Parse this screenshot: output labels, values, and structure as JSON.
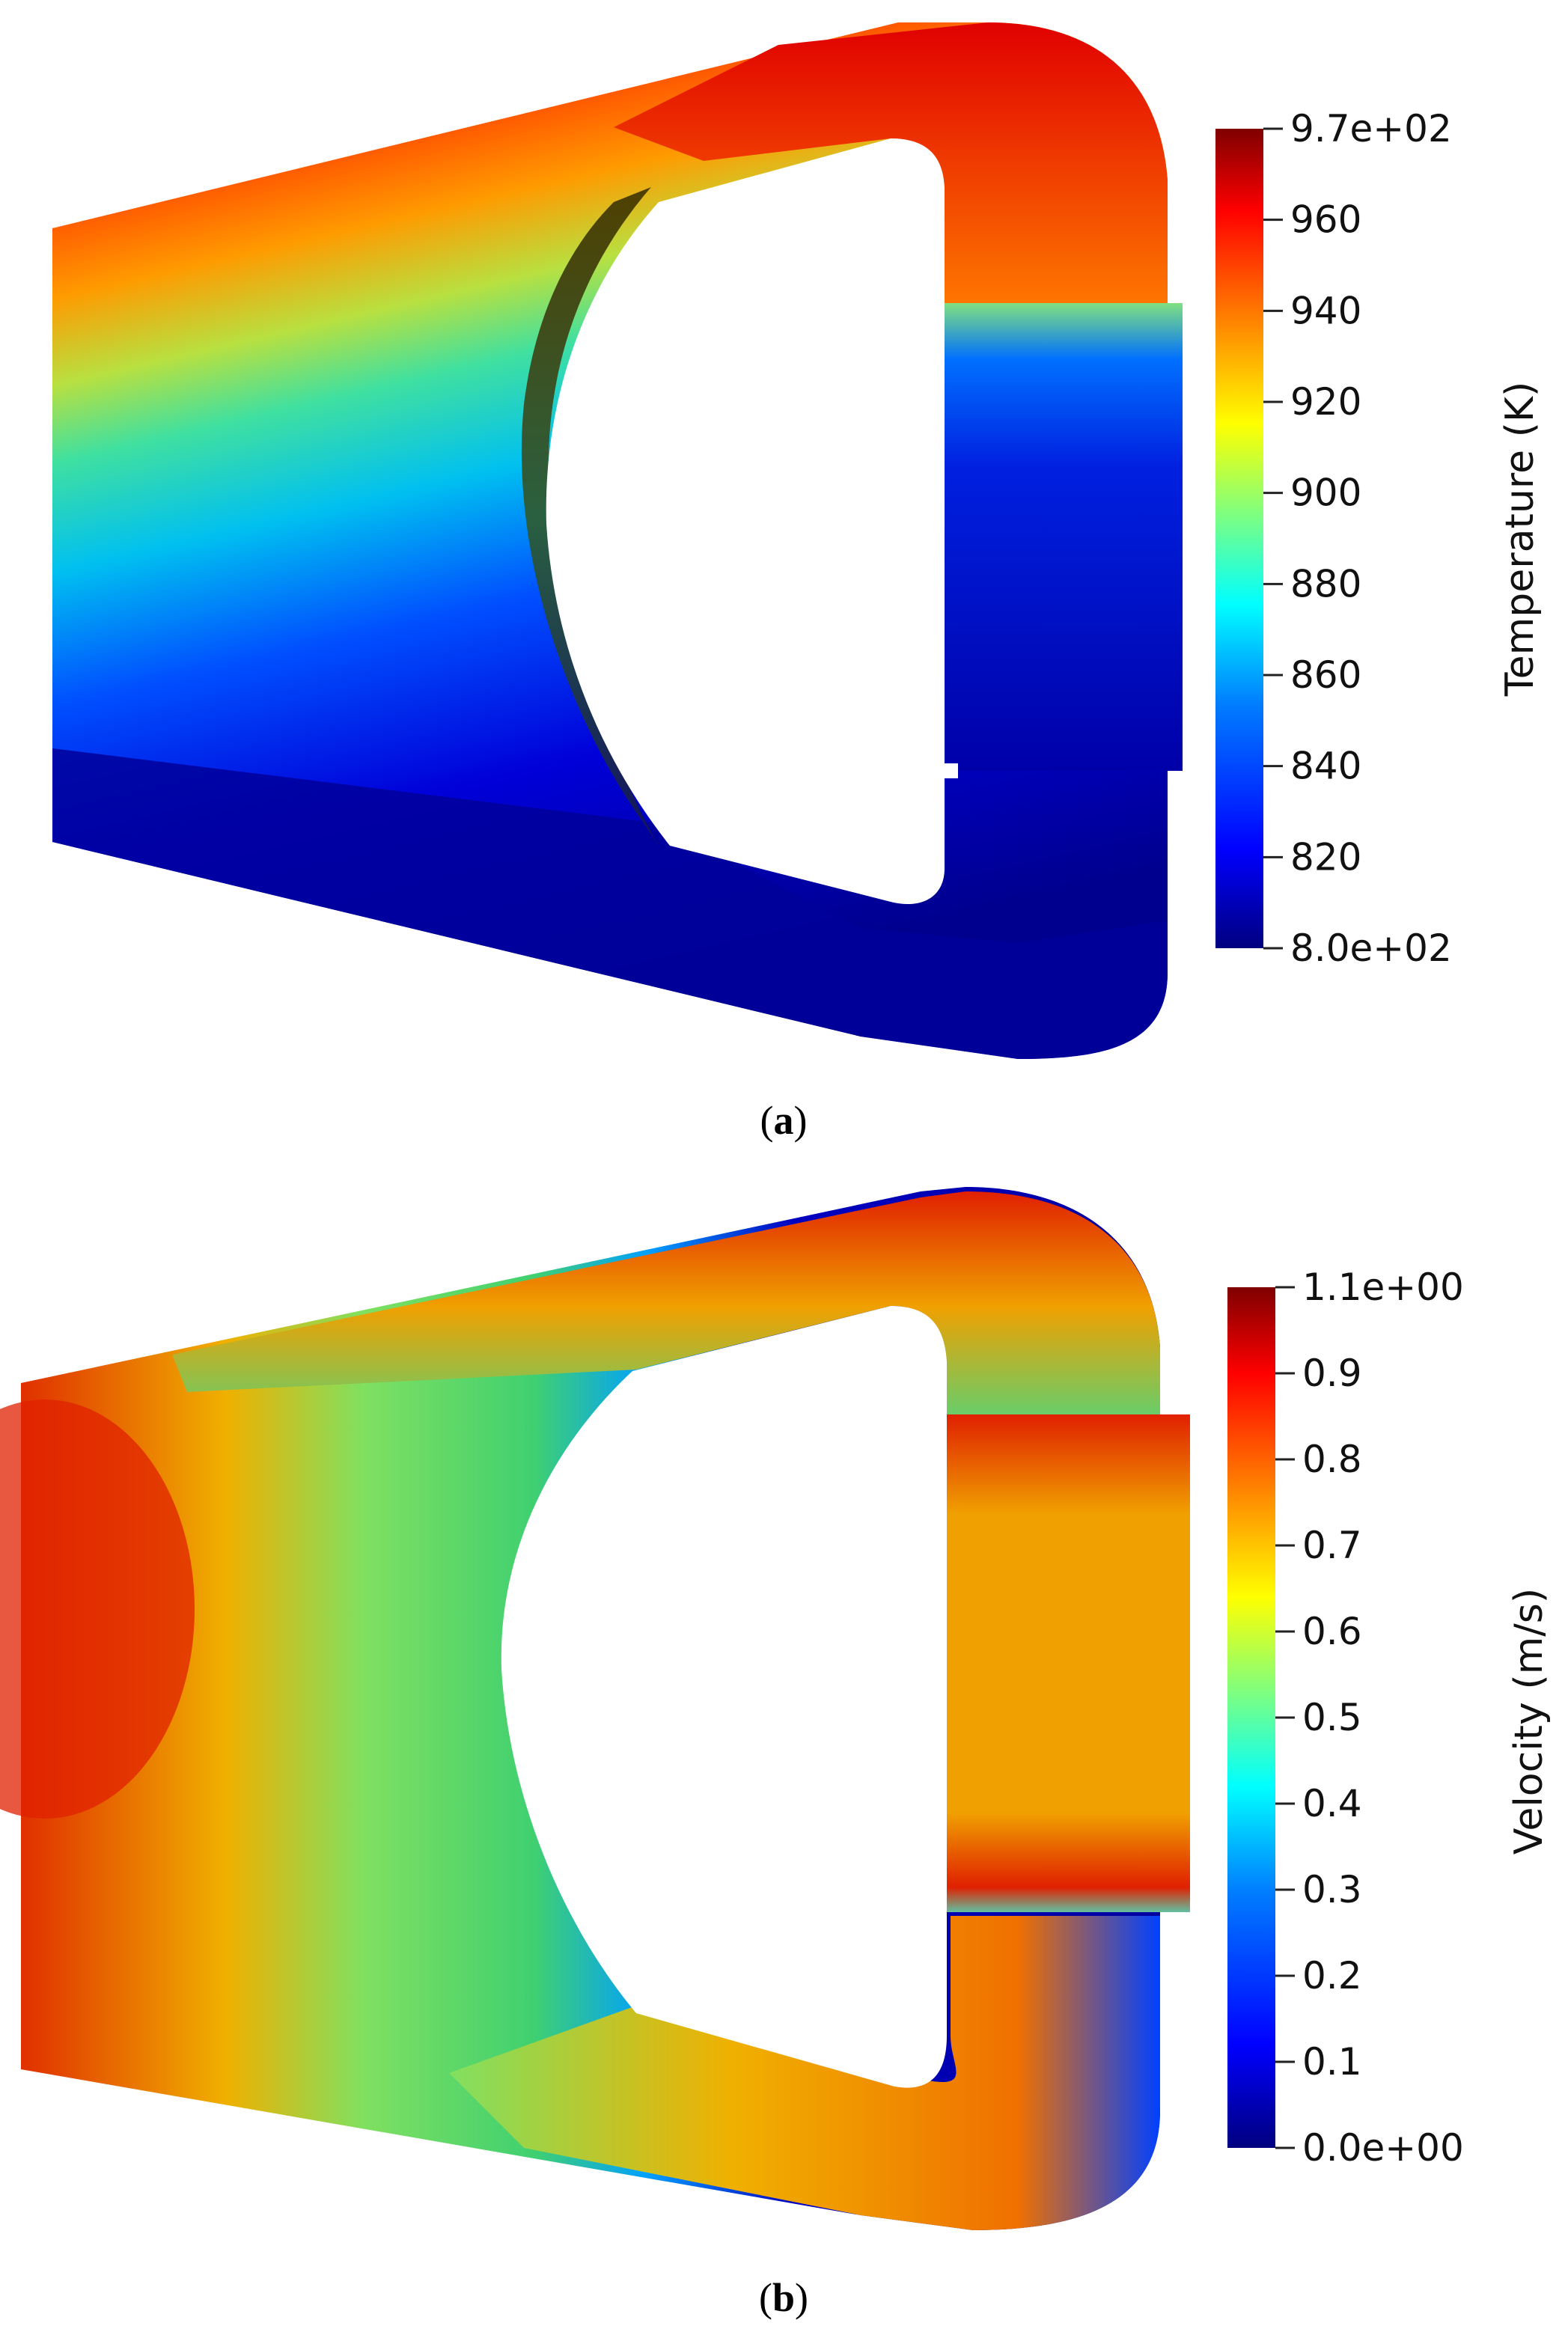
{
  "panels": [
    {
      "id": "a",
      "caption": {
        "open": "(",
        "letter": "a",
        "close": ")"
      },
      "colorbar": {
        "title": "Temperature (K)",
        "ticks": [
          "9.7e+02",
          "960",
          "940",
          "920",
          "900",
          "880",
          "860",
          "840",
          "820",
          "8.0e+02"
        ],
        "min": 800,
        "max": 970
      }
    },
    {
      "id": "b",
      "caption": {
        "open": "(",
        "letter": "b",
        "close": ")"
      },
      "colorbar": {
        "title": "Velocity (m/s)",
        "ticks": [
          "1.1e+00",
          "0.9",
          "0.8",
          "0.7",
          "0.6",
          "0.5",
          "0.4",
          "0.3",
          "0.2",
          "0.1",
          "0.0e+00"
        ],
        "min": 0.0,
        "max": 1.1
      }
    }
  ],
  "colormap": [
    "#00007f",
    "#0000ff",
    "#007fff",
    "#00ffff",
    "#7fff7f",
    "#ffff00",
    "#ff7f00",
    "#ff0000",
    "#7f0000"
  ]
}
